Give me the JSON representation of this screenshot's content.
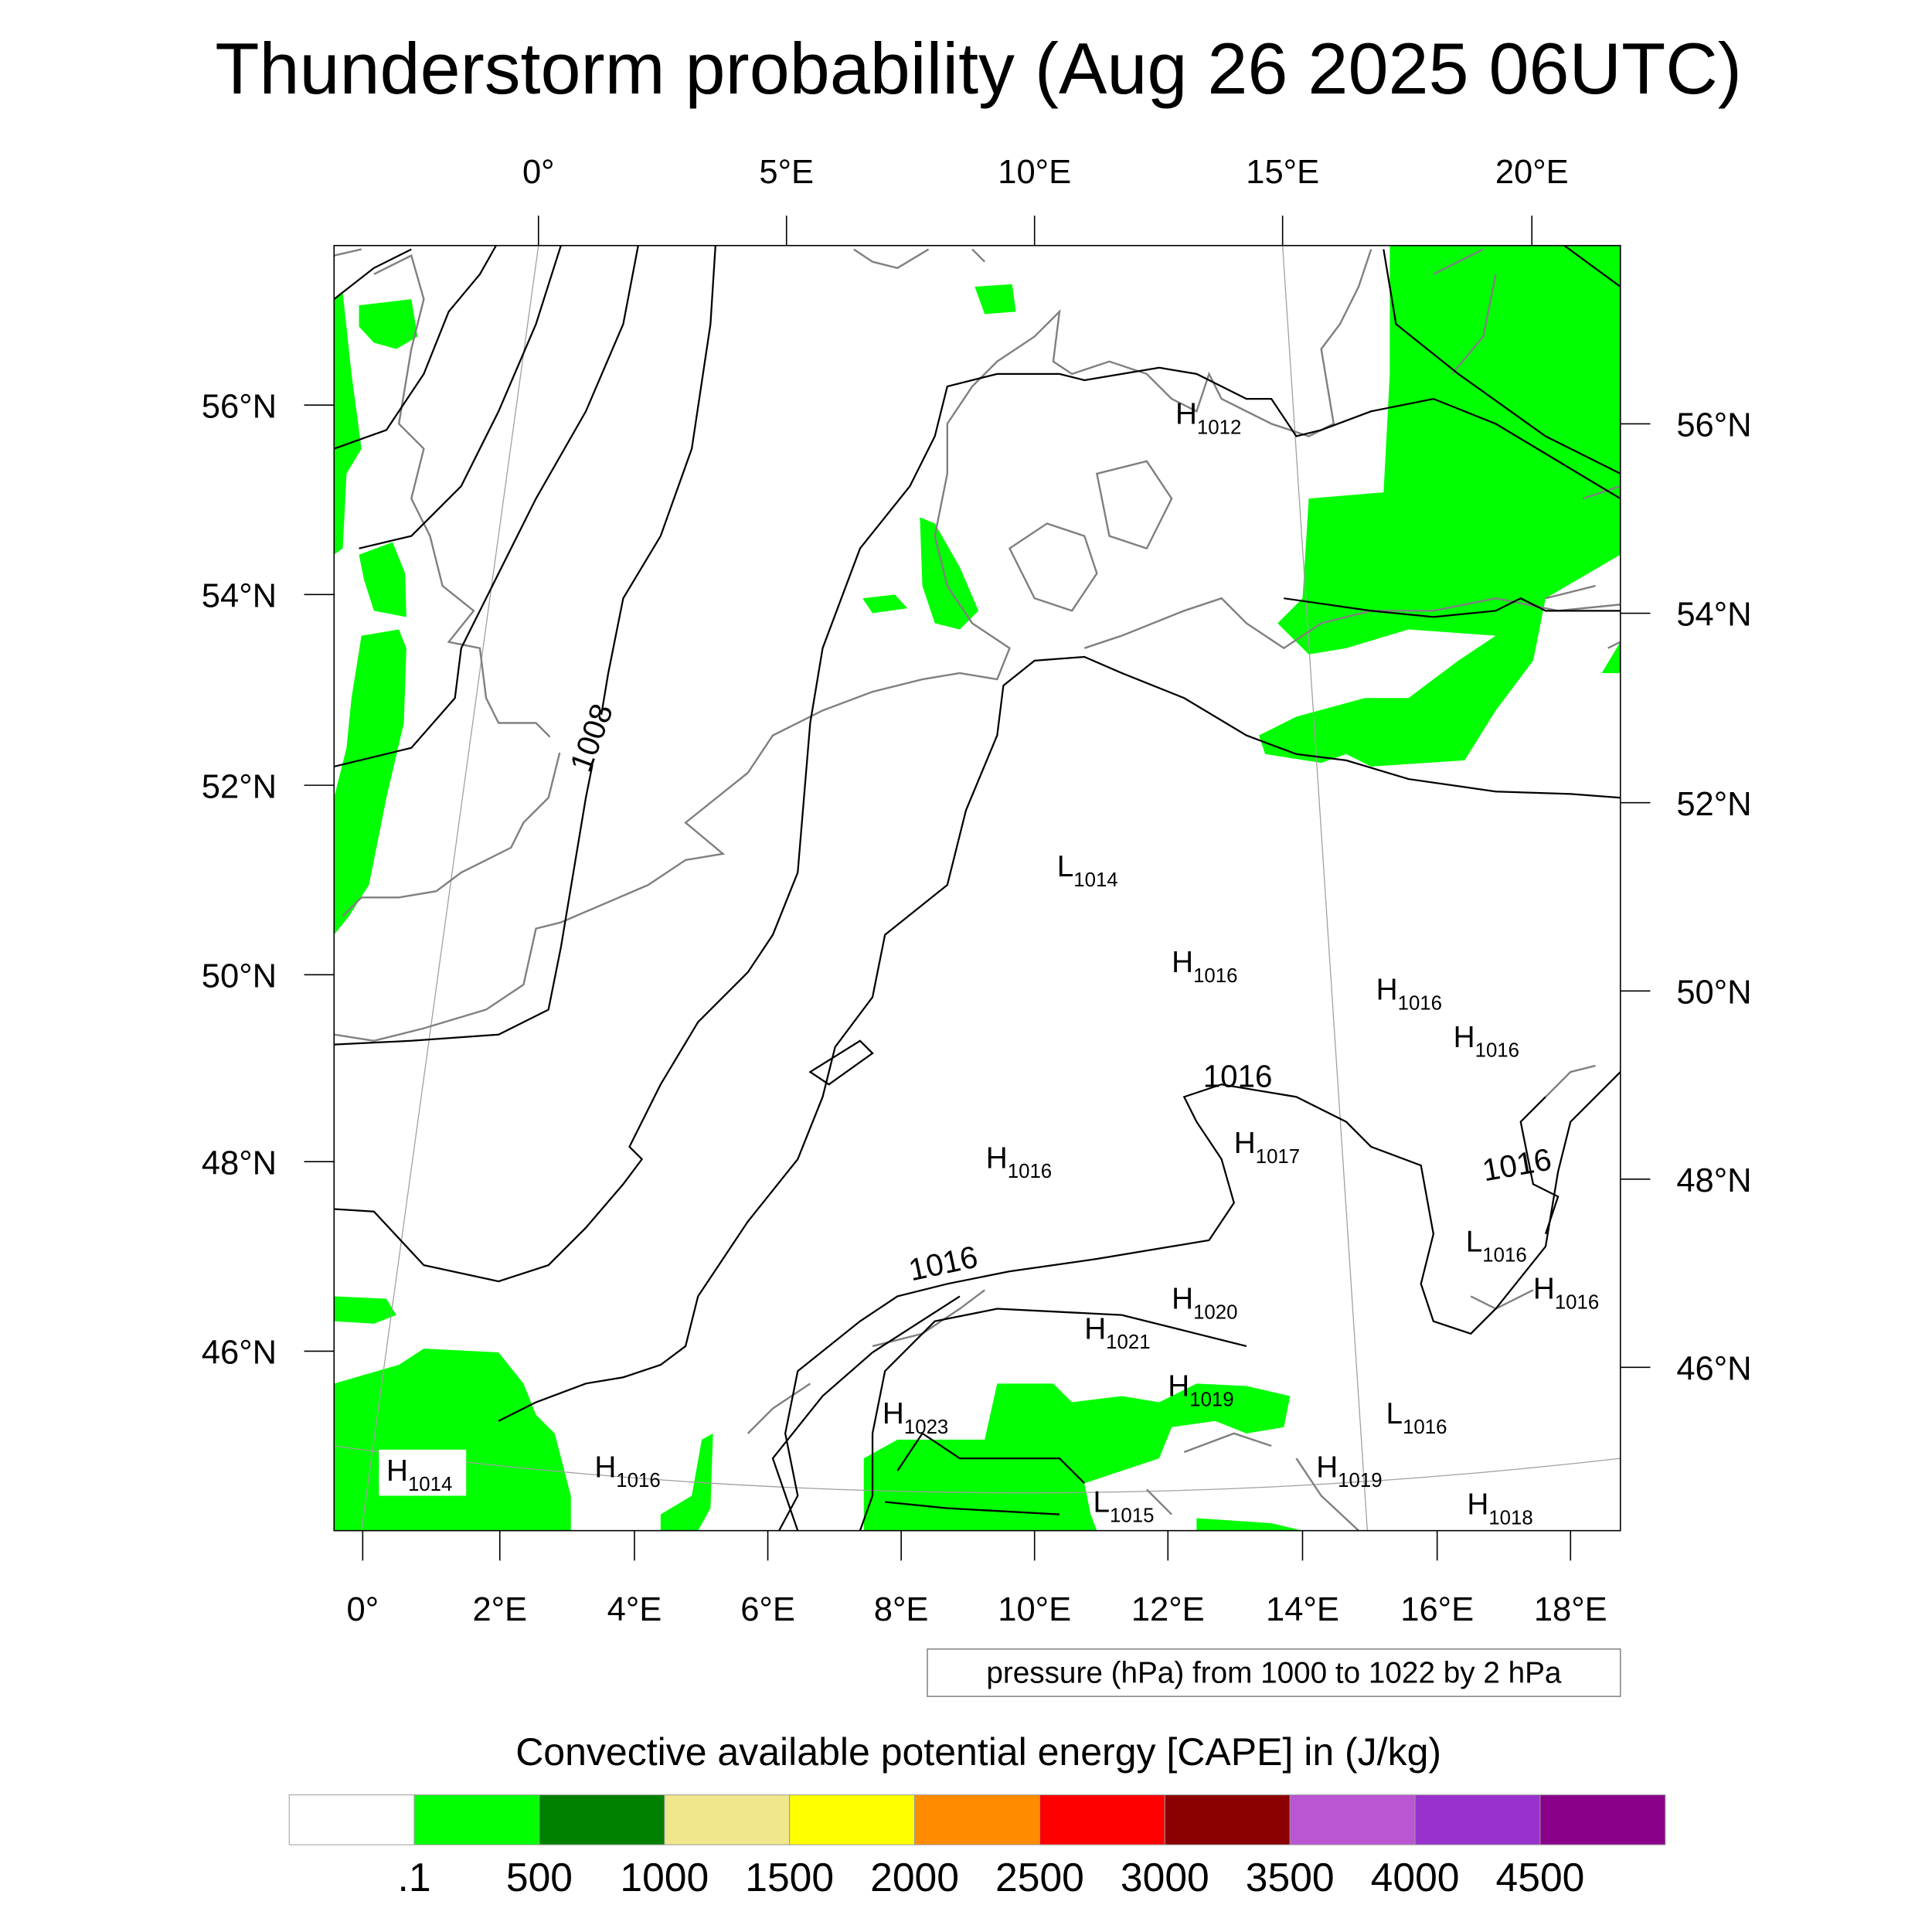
{
  "title": "Thunderstorm probability (Aug 26 2025 06UTC)",
  "top_lon_labels": [
    "0°",
    "5°E",
    "10°E",
    "15°E",
    "20°E"
  ],
  "left_lat_labels": [
    "56°N",
    "54°N",
    "52°N",
    "50°N",
    "48°N",
    "46°N"
  ],
  "right_lat_labels": [
    "56°N",
    "54°N",
    "52°N",
    "50°N",
    "48°N",
    "46°N"
  ],
  "bottom_lon_labels": [
    "0°",
    "2°E",
    "4°E",
    "6°E",
    "8°E",
    "10°E",
    "12°E",
    "14°E",
    "16°E",
    "18°E"
  ],
  "pressure_centers": [
    {
      "type": "H",
      "value": "1012"
    },
    {
      "type": "L",
      "value": "1014"
    },
    {
      "type": "H",
      "value": "1016"
    },
    {
      "type": "H",
      "value": "1016"
    },
    {
      "type": "H",
      "value": "1016"
    },
    {
      "type": "H",
      "value": "1017"
    },
    {
      "type": "H",
      "value": "1016"
    },
    {
      "type": "L",
      "value": "1016"
    },
    {
      "type": "H",
      "value": "1016"
    },
    {
      "type": "H",
      "value": "1020"
    },
    {
      "type": "H",
      "value": "1021"
    },
    {
      "type": "H",
      "value": "1019"
    },
    {
      "type": "L",
      "value": "1016"
    },
    {
      "type": "H",
      "value": "1023"
    },
    {
      "type": "H",
      "value": "1014"
    },
    {
      "type": "H",
      "value": "1016"
    },
    {
      "type": "L",
      "value": "1015"
    },
    {
      "type": "H",
      "value": "1019"
    },
    {
      "type": "H",
      "value": "1018"
    }
  ],
  "contour_labels": [
    "1008",
    "1016",
    "1016",
    "1016"
  ],
  "contour_legend": "pressure (hPa) from 1000 to 1022 by 2 hPa",
  "colorbar": {
    "title": "Convective available potential energy [CAPE] in (J/kg)",
    "colors": [
      "#ffffff",
      "#00ff00",
      "#008000",
      "#f0e68c",
      "#ffff00",
      "#ff8c00",
      "#ff0000",
      "#8b0000",
      "#ba55d3",
      "#9932cc",
      "#8b008b"
    ],
    "labels": [
      ".1",
      "500",
      "1000",
      "1500",
      "2000",
      "2500",
      "3000",
      "3500",
      "4000",
      "4500"
    ]
  }
}
